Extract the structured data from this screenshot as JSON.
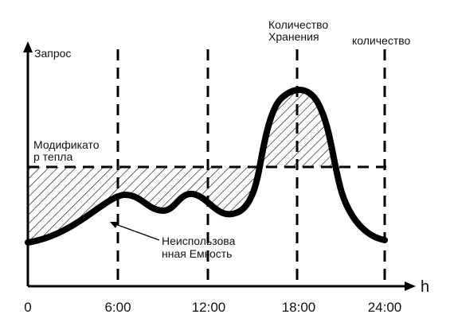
{
  "axes": {
    "y_label": "Запрос",
    "x_label": "h",
    "x_ticks": [
      "0",
      "6:00",
      "12:00",
      "18:00",
      "24:00"
    ]
  },
  "labels": {
    "heat_modifier_line1": "Модификато",
    "heat_modifier_line2": "р тепла",
    "storage_line1": "Количество",
    "storage_line2": "Хранения",
    "quantity": "количество",
    "unused_line1": "Неиспользова",
    "unused_line2": "нная Емкость"
  },
  "colors": {
    "ink": "#000000",
    "background": "#ffffff"
  }
}
